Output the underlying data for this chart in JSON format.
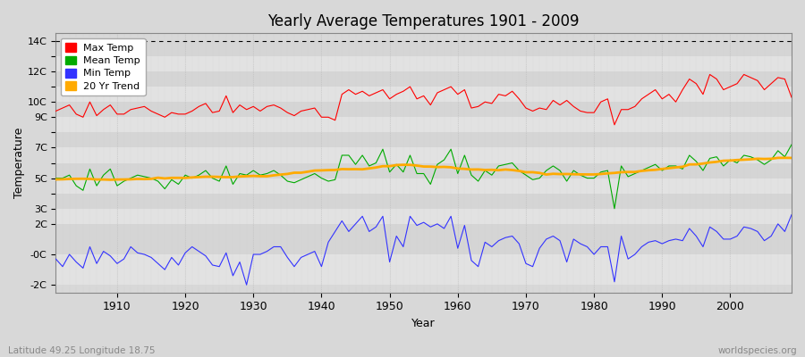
{
  "title": "Yearly Average Temperatures 1901 - 2009",
  "xlabel": "Year",
  "ylabel": "Temperature",
  "lat_lon_label": "Latitude 49.25 Longitude 18.75",
  "source_label": "worldspecies.org",
  "legend_entries": [
    "Max Temp",
    "Mean Temp",
    "Min Temp",
    "20 Yr Trend"
  ],
  "legend_colors": [
    "#ff0000",
    "#00aa00",
    "#0000ff",
    "#ffaa00"
  ],
  "years": [
    1901,
    1902,
    1903,
    1904,
    1905,
    1906,
    1907,
    1908,
    1909,
    1910,
    1911,
    1912,
    1913,
    1914,
    1915,
    1916,
    1917,
    1918,
    1919,
    1920,
    1921,
    1922,
    1923,
    1924,
    1925,
    1926,
    1927,
    1928,
    1929,
    1930,
    1931,
    1932,
    1933,
    1934,
    1935,
    1936,
    1937,
    1938,
    1939,
    1940,
    1941,
    1942,
    1943,
    1944,
    1945,
    1946,
    1947,
    1948,
    1949,
    1950,
    1951,
    1952,
    1953,
    1954,
    1955,
    1956,
    1957,
    1958,
    1959,
    1960,
    1961,
    1962,
    1963,
    1964,
    1965,
    1966,
    1967,
    1968,
    1969,
    1970,
    1971,
    1972,
    1973,
    1974,
    1975,
    1976,
    1977,
    1978,
    1979,
    1980,
    1981,
    1982,
    1983,
    1984,
    1985,
    1986,
    1987,
    1988,
    1989,
    1990,
    1991,
    1992,
    1993,
    1994,
    1995,
    1996,
    1997,
    1998,
    1999,
    2000,
    2001,
    2002,
    2003,
    2004,
    2005,
    2006,
    2007,
    2008,
    2009
  ],
  "max_temp": [
    9.4,
    9.6,
    9.8,
    9.2,
    9.0,
    10.0,
    9.1,
    9.5,
    9.8,
    9.2,
    9.2,
    9.5,
    9.6,
    9.7,
    9.4,
    9.2,
    9.0,
    9.3,
    9.2,
    9.2,
    9.4,
    9.7,
    9.9,
    9.3,
    9.4,
    10.4,
    9.3,
    9.8,
    9.5,
    9.7,
    9.4,
    9.7,
    9.8,
    9.6,
    9.3,
    9.1,
    9.4,
    9.5,
    9.6,
    9.0,
    9.0,
    8.8,
    10.5,
    10.8,
    10.5,
    10.7,
    10.4,
    10.6,
    10.8,
    10.2,
    10.5,
    10.7,
    11.0,
    10.2,
    10.4,
    9.8,
    10.6,
    10.8,
    11.0,
    10.5,
    10.8,
    9.6,
    9.7,
    10.0,
    9.9,
    10.5,
    10.4,
    10.7,
    10.2,
    9.6,
    9.4,
    9.6,
    9.5,
    10.1,
    9.8,
    10.1,
    9.7,
    9.4,
    9.3,
    9.3,
    10.0,
    10.2,
    8.5,
    9.5,
    9.5,
    9.7,
    10.2,
    10.5,
    10.8,
    10.2,
    10.5,
    10.0,
    10.8,
    11.5,
    11.2,
    10.5,
    11.8,
    11.5,
    10.8,
    11.0,
    11.2,
    11.8,
    11.6,
    11.4,
    10.8,
    11.2,
    11.6,
    11.5,
    10.3
  ],
  "mean_temp": [
    5.0,
    5.0,
    5.2,
    4.5,
    4.2,
    5.6,
    4.5,
    5.2,
    5.6,
    4.5,
    4.8,
    5.0,
    5.2,
    5.1,
    5.0,
    4.8,
    4.3,
    4.9,
    4.6,
    5.2,
    5.0,
    5.2,
    5.5,
    5.0,
    4.8,
    5.8,
    4.6,
    5.3,
    5.2,
    5.5,
    5.2,
    5.3,
    5.5,
    5.2,
    4.8,
    4.7,
    4.9,
    5.1,
    5.3,
    5.0,
    4.8,
    4.9,
    6.5,
    6.5,
    5.9,
    6.5,
    5.8,
    6.0,
    6.9,
    5.4,
    5.9,
    5.4,
    6.5,
    5.3,
    5.3,
    4.6,
    5.9,
    6.2,
    6.9,
    5.3,
    6.5,
    5.2,
    4.8,
    5.5,
    5.2,
    5.8,
    5.9,
    6.0,
    5.5,
    5.2,
    4.9,
    5.0,
    5.5,
    5.8,
    5.5,
    4.8,
    5.5,
    5.2,
    5.0,
    5.0,
    5.4,
    5.5,
    3.0,
    5.8,
    5.1,
    5.3,
    5.5,
    5.7,
    5.9,
    5.5,
    5.8,
    5.8,
    5.6,
    6.5,
    6.1,
    5.5,
    6.3,
    6.4,
    5.8,
    6.2,
    6.0,
    6.5,
    6.4,
    6.2,
    5.9,
    6.2,
    6.8,
    6.4,
    7.2
  ],
  "min_temp": [
    -0.3,
    -0.8,
    0.0,
    -0.5,
    -0.9,
    0.5,
    -0.6,
    0.2,
    -0.1,
    -0.6,
    -0.3,
    0.5,
    0.1,
    0.0,
    -0.2,
    -0.6,
    -1.0,
    -0.2,
    -0.7,
    0.1,
    0.5,
    0.2,
    -0.1,
    -0.7,
    -0.8,
    0.1,
    -1.4,
    -0.5,
    -2.0,
    0.0,
    0.0,
    0.2,
    0.5,
    0.5,
    -0.2,
    -0.8,
    -0.2,
    0.0,
    0.2,
    -0.8,
    0.8,
    1.5,
    2.2,
    1.5,
    2.0,
    2.5,
    1.5,
    1.8,
    2.5,
    -0.5,
    1.2,
    0.5,
    2.5,
    1.9,
    2.1,
    1.8,
    2.0,
    1.7,
    2.5,
    0.4,
    1.9,
    -0.4,
    -0.8,
    0.8,
    0.5,
    0.9,
    1.1,
    1.2,
    0.7,
    -0.6,
    -0.8,
    0.4,
    1.0,
    1.2,
    0.9,
    -0.5,
    1.0,
    0.7,
    0.5,
    -0.0,
    0.5,
    0.5,
    -1.8,
    1.2,
    -0.3,
    0.0,
    0.5,
    0.8,
    0.9,
    0.7,
    0.9,
    1.0,
    0.9,
    1.7,
    1.2,
    0.5,
    1.8,
    1.5,
    1.0,
    1.0,
    1.2,
    1.8,
    1.7,
    1.5,
    0.9,
    1.2,
    2.0,
    1.5,
    2.6
  ],
  "ylim": [
    -2.5,
    14.5
  ],
  "ytick_positions": [
    -2,
    0,
    2,
    3,
    4,
    5,
    6,
    7,
    8,
    9,
    10,
    11,
    12,
    13,
    14
  ],
  "ytick_labels": [
    "-2C",
    "-0C",
    "2C",
    "3C",
    "",
    "5C",
    "",
    "7C",
    "",
    "9C",
    "10C",
    "",
    "12C",
    "",
    "14C"
  ],
  "xlim": [
    1901,
    2009
  ],
  "xtick_positions": [
    1910,
    1920,
    1930,
    1940,
    1950,
    1960,
    1970,
    1980,
    1990,
    2000
  ],
  "band_colors": [
    "#e0e0e0",
    "#d8d8d8"
  ],
  "plot_bg": "#d8d8d8",
  "fig_bg": "#d8d8d8",
  "grid_color": "#ffffff",
  "dashed_top_line_y": 14.0,
  "trend_color": "#ffaa00",
  "max_color": "#ff0000",
  "mean_color": "#00aa00",
  "min_color": "#3333ff"
}
